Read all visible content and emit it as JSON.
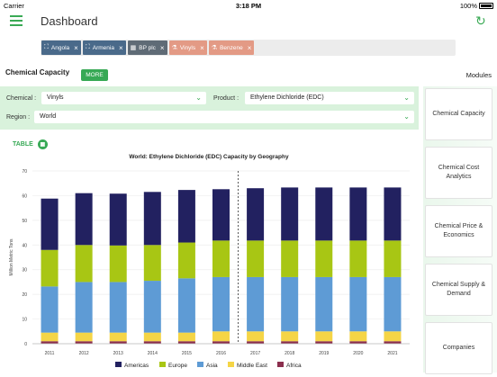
{
  "status": {
    "carrier": "Carrier",
    "time": "3:18 PM",
    "battery": "100%"
  },
  "nav": {
    "title": "Dashboard"
  },
  "filters": [
    {
      "label": "Angola",
      "kind": "geo"
    },
    {
      "label": "Armenia",
      "kind": "geo"
    },
    {
      "label": "BP plc",
      "kind": "comp"
    },
    {
      "label": "Vinyls",
      "kind": "chem"
    },
    {
      "label": "Benzene",
      "kind": "chem"
    }
  ],
  "section": {
    "title": "Chemical Capacity",
    "more": "MORE",
    "modules_title": "Modules"
  },
  "selectors": {
    "chemical_label": "Chemical :",
    "chemical_value": "Vinyls",
    "product_label": "Product :",
    "product_value": "Ethylene Dichloride (EDC)",
    "region_label": "Region :",
    "region_value": "World"
  },
  "table_link": "TABLE",
  "modules": [
    "Chemical Capacity",
    "Chemical Cost Analytics",
    "Chemical Price & Economics",
    "Chemical Supply & Demand",
    "Companies"
  ],
  "colors": {
    "accent": "#37a955",
    "americas": "#222160",
    "europe": "#a8c614",
    "asia": "#5e9bd5",
    "middle_east": "#f5d546",
    "africa": "#8b2f4e"
  },
  "chart_data": {
    "type": "bar",
    "title": "World: Ethylene Dichloride (EDC) Capacity by Geography",
    "ylabel": "Million Metric Tons",
    "xlabel": "",
    "ylim": [
      0,
      70
    ],
    "yticks": [
      0,
      10,
      20,
      30,
      40,
      50,
      60,
      70
    ],
    "categories": [
      "2011",
      "2012",
      "2013",
      "2014",
      "2015",
      "2016",
      "2017",
      "2018",
      "2019",
      "2020",
      "2021"
    ],
    "forecast_divider_after": "2016",
    "series": [
      {
        "name": "Africa",
        "values": [
          1.0,
          1.0,
          1.0,
          1.0,
          1.0,
          1.0,
          1.0,
          1.0,
          1.0,
          1.0,
          1.0
        ]
      },
      {
        "name": "Middle East",
        "values": [
          3.5,
          3.5,
          3.5,
          3.5,
          3.5,
          4.0,
          4.0,
          4.0,
          4.0,
          4.0,
          4.0
        ]
      },
      {
        "name": "Asia",
        "values": [
          18.7,
          20.5,
          20.5,
          21.0,
          22.0,
          22.0,
          22.0,
          22.0,
          22.0,
          22.0,
          22.0
        ]
      },
      {
        "name": "Europe",
        "values": [
          14.8,
          15.0,
          14.8,
          14.5,
          14.5,
          14.8,
          14.8,
          14.8,
          14.8,
          14.8,
          14.8
        ]
      },
      {
        "name": "Americas",
        "values": [
          20.8,
          21.0,
          21.0,
          21.5,
          21.3,
          20.8,
          21.2,
          21.5,
          21.5,
          21.5,
          21.5
        ]
      }
    ],
    "legend": [
      "Americas",
      "Europe",
      "Asia",
      "Middle East",
      "Africa"
    ],
    "legend_position": "bottom"
  }
}
